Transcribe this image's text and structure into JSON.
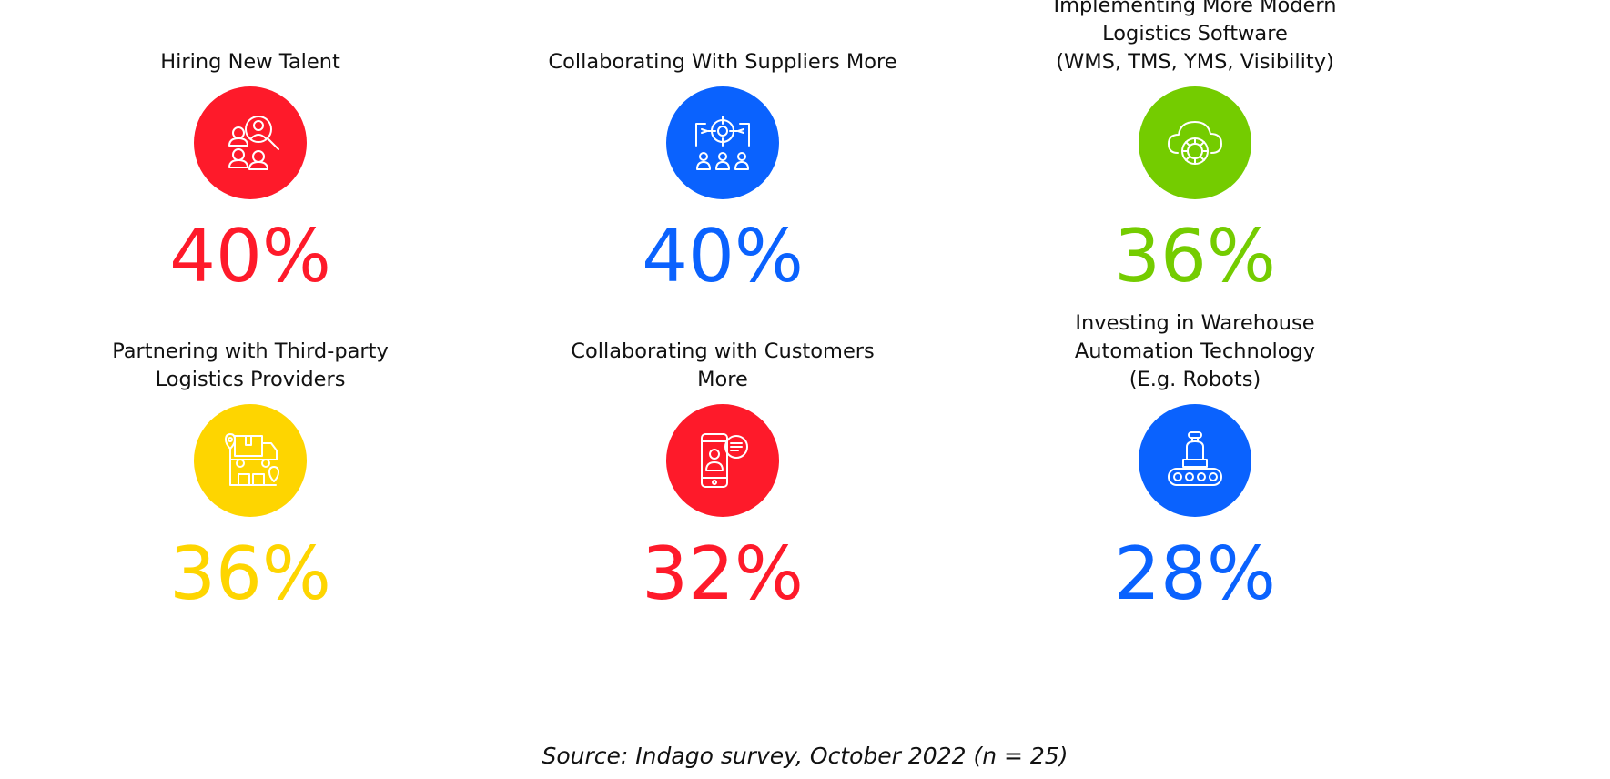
{
  "chart_data": {
    "type": "infographic",
    "items": [
      {
        "label_lines": [
          "Hiring New Talent"
        ],
        "value": 40,
        "display": "40%",
        "color": "#fe1a2a",
        "icon": "talent-search-icon"
      },
      {
        "label_lines": [
          "Collaborating With Suppliers More"
        ],
        "value": 40,
        "display": "40%",
        "color": "#0a62fe",
        "icon": "suppliers-target-icon"
      },
      {
        "label_lines": [
          "Implementing More Modern",
          "Logistics Software",
          "(WMS, TMS, YMS, Visibility)"
        ],
        "value": 36,
        "display": "36%",
        "color": "#74cc00",
        "icon": "cloud-gear-icon"
      },
      {
        "label_lines": [
          "Partnering with Third-party",
          "Logistics Providers"
        ],
        "value": 36,
        "display": "36%",
        "color": "#fed500",
        "icon": "logistics-truck-icon"
      },
      {
        "label_lines": [
          "Collaborating with Customers",
          "More"
        ],
        "value": 32,
        "display": "32%",
        "color": "#fe1a2a",
        "icon": "phone-chat-icon"
      },
      {
        "label_lines": [
          "Investing in Warehouse",
          "Automation Technology",
          "(E.g. Robots)"
        ],
        "value": 28,
        "display": "28%",
        "color": "#0a62fe",
        "icon": "robot-conveyor-icon"
      }
    ],
    "source": "Source: Indago survey, October 2022 (n = 25)"
  }
}
